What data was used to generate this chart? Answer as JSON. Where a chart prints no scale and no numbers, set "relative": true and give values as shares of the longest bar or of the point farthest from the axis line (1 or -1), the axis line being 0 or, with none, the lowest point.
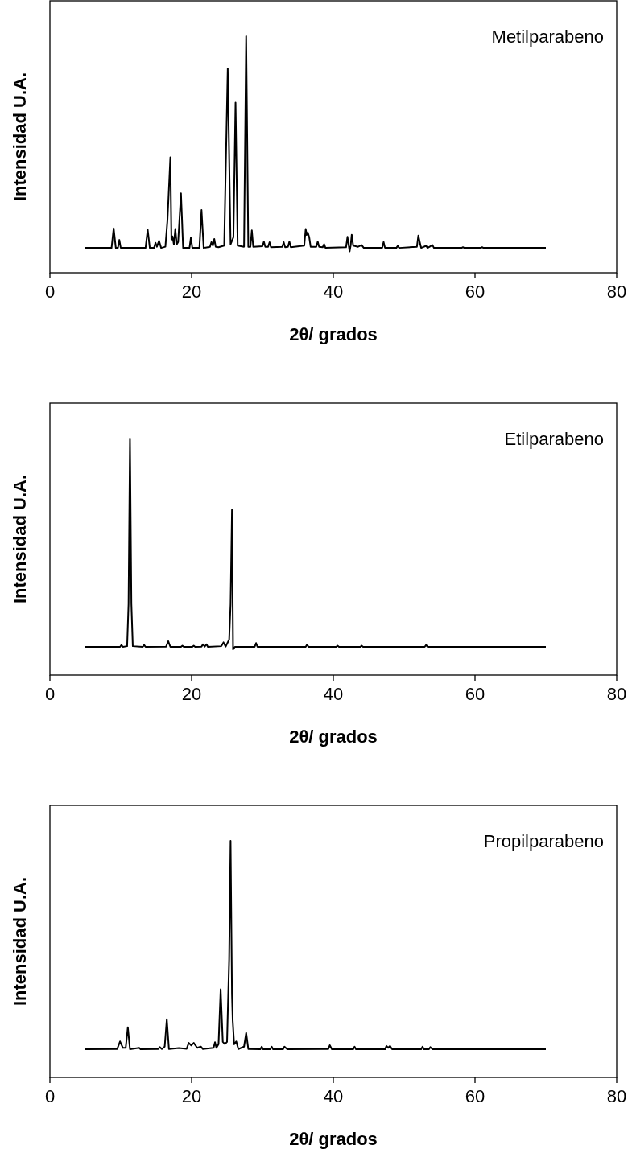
{
  "chart_data": [
    {
      "type": "line",
      "title": "Metilparabeno",
      "xlabel": "2θ/ grados",
      "ylabel": "Intensidad U.A.",
      "relative": true,
      "xlim": [
        0,
        80
      ],
      "xticks": [
        0,
        20,
        40,
        60,
        80
      ],
      "series": [
        {
          "color": "#000000",
          "x": [
            5,
            8.7,
            9.0,
            9.3,
            9.6,
            9.8,
            10.0,
            13.5,
            13.8,
            14.1,
            14.7,
            14.9,
            15.1,
            15.4,
            15.7,
            16.3,
            16.6,
            17.0,
            17.15,
            17.3,
            17.5,
            17.7,
            17.9,
            18.1,
            18.5,
            18.8,
            19.7,
            19.9,
            20.1,
            21.1,
            21.4,
            21.7,
            22.6,
            22.8,
            23.0,
            23.2,
            23.4,
            23.8,
            24.6,
            25.1,
            25.5,
            25.9,
            26.2,
            26.5,
            27.4,
            27.7,
            28.0,
            28.3,
            28.5,
            28.7,
            30.0,
            30.2,
            30.4,
            30.8,
            31.0,
            31.2,
            32.8,
            33.0,
            33.2,
            33.6,
            33.8,
            34.0,
            35.9,
            36.1,
            36.25,
            36.4,
            36.6,
            36.8,
            37.6,
            37.8,
            38.0,
            38.5,
            38.7,
            38.9,
            41.8,
            42.0,
            42.2,
            42.3,
            42.45,
            42.6,
            42.8,
            43.5,
            44.0,
            44.3,
            46.9,
            47.1,
            47.3,
            48.9,
            49.1,
            49.3,
            51.8,
            52.0,
            52.2,
            52.4,
            53.1,
            53.3,
            54.0,
            54.2,
            58.1,
            58.3,
            58.5,
            60.8,
            61.0,
            61.2,
            70
          ],
          "values": [
            0.105,
            0.105,
            0.188,
            0.105,
            0.105,
            0.139,
            0.105,
            0.105,
            0.182,
            0.105,
            0.105,
            0.127,
            0.11,
            0.135,
            0.105,
            0.11,
            0.226,
            0.488,
            0.14,
            0.154,
            0.12,
            0.185,
            0.12,
            0.13,
            0.336,
            0.105,
            0.105,
            0.149,
            0.105,
            0.105,
            0.265,
            0.105,
            0.11,
            0.13,
            0.115,
            0.143,
            0.11,
            0.108,
            0.115,
            0.864,
            0.12,
            0.15,
            0.719,
            0.115,
            0.11,
            1,
            0.11,
            0.11,
            0.179,
            0.11,
            0.112,
            0.132,
            0.11,
            0.11,
            0.129,
            0.108,
            0.11,
            0.129,
            0.108,
            0.11,
            0.132,
            0.108,
            0.115,
            0.185,
            0.16,
            0.17,
            0.15,
            0.11,
            0.11,
            0.132,
            0.11,
            0.108,
            0.121,
            0.105,
            0.108,
            0.152,
            0.11,
            0.09,
            0.115,
            0.161,
            0.115,
            0.11,
            0.117,
            0.105,
            0.105,
            0.13,
            0.105,
            0.105,
            0.114,
            0.105,
            0.11,
            0.157,
            0.13,
            0.105,
            0.114,
            0.105,
            0.117,
            0.105,
            0.105,
            0.108,
            0.105,
            0.105,
            0.108,
            0.105,
            0.105
          ]
        }
      ]
    },
    {
      "type": "line",
      "title": "Etilparabeno",
      "xlabel": "2θ/ grados",
      "ylabel": "Intensidad U.A.",
      "relative": true,
      "xlim": [
        0,
        80
      ],
      "xticks": [
        0,
        20,
        40,
        60,
        80
      ],
      "series": [
        {
          "color": "#000000",
          "x": [
            5,
            9.9,
            10.1,
            10.3,
            10.9,
            11.1,
            11.3,
            11.5,
            11.7,
            13.1,
            13.3,
            13.5,
            16.4,
            16.7,
            17.0,
            18.5,
            18.7,
            18.9,
            20.1,
            20.3,
            20.5,
            21.4,
            21.6,
            21.85,
            22.1,
            22.3,
            24.2,
            24.5,
            24.8,
            25.3,
            25.5,
            25.7,
            25.85,
            26.1,
            28.9,
            29.1,
            29.3,
            36.1,
            36.3,
            36.5,
            40.4,
            40.6,
            40.8,
            43.8,
            44.0,
            44.2,
            52.9,
            53.1,
            53.3,
            70
          ],
          "values": [
            0.119,
            0.119,
            0.127,
            0.119,
            0.122,
            0.3,
            1,
            0.3,
            0.122,
            0.119,
            0.127,
            0.119,
            0.12,
            0.143,
            0.119,
            0.119,
            0.124,
            0.119,
            0.119,
            0.124,
            0.119,
            0.12,
            0.13,
            0.12,
            0.13,
            0.119,
            0.122,
            0.138,
            0.12,
            0.15,
            0.3,
            0.699,
            0.108,
            0.119,
            0.119,
            0.135,
            0.119,
            0.119,
            0.129,
            0.119,
            0.119,
            0.124,
            0.119,
            0.119,
            0.124,
            0.119,
            0.119,
            0.127,
            0.119,
            0.119
          ]
        }
      ]
    },
    {
      "type": "line",
      "title": "Propilparabeno",
      "xlabel": "2θ/ grados",
      "ylabel": "Intensidad U.A.",
      "relative": true,
      "xlim": [
        0,
        80
      ],
      "xticks": [
        0,
        20,
        40,
        60,
        80
      ],
      "series": [
        {
          "color": "#000000",
          "x": [
            5,
            9.5,
            9.9,
            10.3,
            10.7,
            11.0,
            11.3,
            12.6,
            12.8,
            15.3,
            15.5,
            15.8,
            16.2,
            16.5,
            16.8,
            18.2,
            19.3,
            19.6,
            19.95,
            20.3,
            20.8,
            21.3,
            21.6,
            23.1,
            23.3,
            23.5,
            23.8,
            24.1,
            24.4,
            24.7,
            25.0,
            25.3,
            25.5,
            25.7,
            25.8,
            26.0,
            26.3,
            26.6,
            27.4,
            27.7,
            28.0,
            29.7,
            29.9,
            30.1,
            31.1,
            31.3,
            31.5,
            32.9,
            33.1,
            33.5,
            39.3,
            39.5,
            39.8,
            42.8,
            43.0,
            43.2,
            47.3,
            47.5,
            47.75,
            48.0,
            48.3,
            52.4,
            52.6,
            52.8,
            53.5,
            53.7,
            54,
            70
          ],
          "values": [
            0.119,
            0.12,
            0.152,
            0.125,
            0.125,
            0.212,
            0.119,
            0.125,
            0.119,
            0.12,
            0.128,
            0.12,
            0.13,
            0.246,
            0.12,
            0.124,
            0.121,
            0.146,
            0.135,
            0.146,
            0.125,
            0.13,
            0.12,
            0.125,
            0.149,
            0.125,
            0.14,
            0.372,
            0.15,
            0.141,
            0.15,
            0.5,
            1,
            0.35,
            0.241,
            0.14,
            0.152,
            0.12,
            0.13,
            0.188,
            0.12,
            0.119,
            0.13,
            0.119,
            0.119,
            0.13,
            0.119,
            0.119,
            0.13,
            0.119,
            0.12,
            0.136,
            0.119,
            0.119,
            0.13,
            0.119,
            0.119,
            0.133,
            0.125,
            0.133,
            0.119,
            0.119,
            0.13,
            0.119,
            0.119,
            0.128,
            0.119,
            0.119
          ]
        }
      ]
    }
  ]
}
